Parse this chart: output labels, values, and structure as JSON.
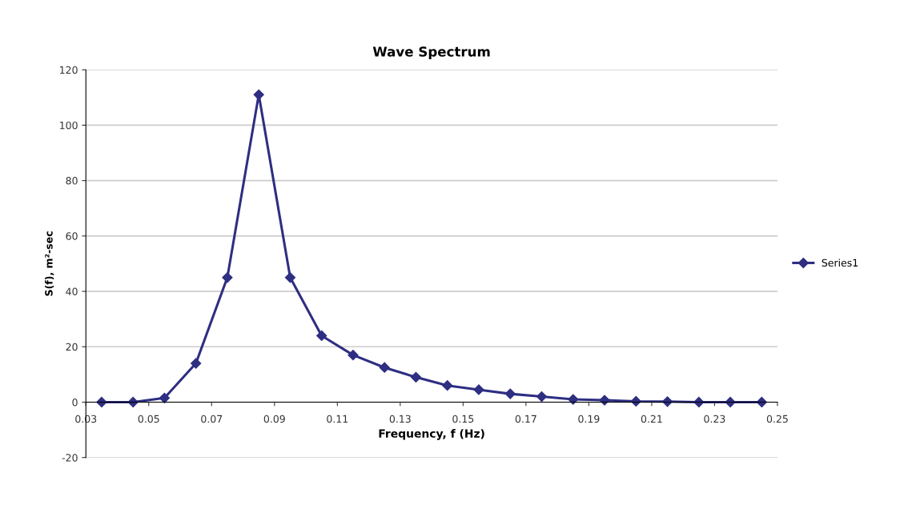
{
  "chart_data": {
    "type": "line",
    "title": "Wave Spectrum",
    "xlabel": "Frequency, f (Hz)",
    "ylabel": "S(f), m²-sec",
    "x": [
      0.035,
      0.045,
      0.055,
      0.065,
      0.075,
      0.085,
      0.095,
      0.105,
      0.115,
      0.125,
      0.135,
      0.145,
      0.155,
      0.165,
      0.175,
      0.185,
      0.195,
      0.205,
      0.215,
      0.225,
      0.235,
      0.245
    ],
    "series": [
      {
        "name": "Series1",
        "color": "#2e2e82",
        "values": [
          0,
          0,
          1.5,
          14,
          45,
          111,
          45,
          24,
          17,
          12.5,
          9,
          6,
          4.5,
          3,
          2,
          1,
          0.7,
          0.3,
          0.2,
          0,
          0,
          0
        ]
      }
    ],
    "xlim": [
      0.03,
      0.25
    ],
    "xticks": [
      {
        "value": 0.03,
        "label": "0.03"
      },
      {
        "value": 0.05,
        "label": "0.05"
      },
      {
        "value": 0.07,
        "label": "0.07"
      },
      {
        "value": 0.09,
        "label": "0.09"
      },
      {
        "value": 0.11,
        "label": "0.11"
      },
      {
        "value": 0.13,
        "label": "0.13"
      },
      {
        "value": 0.15,
        "label": "0.15"
      },
      {
        "value": 0.17,
        "label": "0.17"
      },
      {
        "value": 0.19,
        "label": "0.19"
      },
      {
        "value": 0.21,
        "label": "0.21"
      },
      {
        "value": 0.23,
        "label": "0.23"
      },
      {
        "value": 0.25,
        "label": "0.25"
      }
    ],
    "ylim": [
      -20,
      120
    ],
    "yticks": [
      -20,
      0,
      20,
      40,
      60,
      80,
      100,
      120
    ],
    "grid": "y",
    "legend": "right",
    "marker": "diamond",
    "line_style": "solid"
  }
}
